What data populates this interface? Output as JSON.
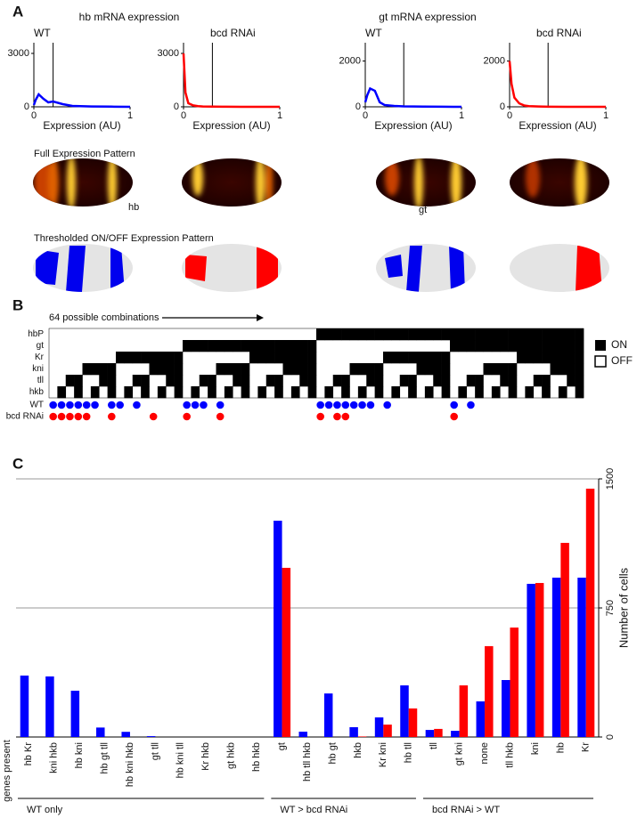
{
  "panel_labels": [
    "A",
    "B",
    "C"
  ],
  "panel_a": {
    "groups": [
      "hb mRNA expression",
      "gt mRNA expression"
    ],
    "full_title": "Full Expression Pattern",
    "threshold_title": "Thresholded ON/OFF Expression Pattern",
    "embryo_labels": [
      "hb",
      "gt"
    ]
  },
  "panel_b": {
    "title": "64 possible combinations",
    "rows": [
      "hbP",
      "gt",
      "Kr",
      "kni",
      "tll",
      "hkb"
    ],
    "legend": [
      "ON",
      "OFF"
    ],
    "dot_rows": [
      {
        "label": "WT",
        "color": "#0000ff",
        "columns": [
          0,
          1,
          2,
          3,
          4,
          5,
          7,
          8,
          10,
          16,
          17,
          18,
          20,
          32,
          33,
          34,
          35,
          36,
          37,
          38,
          40,
          48,
          50
        ]
      },
      {
        "label": "bcd RNAi",
        "color": "#ff0000",
        "columns": [
          0,
          1,
          2,
          3,
          4,
          7,
          12,
          16,
          20,
          32,
          34,
          35,
          48
        ]
      }
    ]
  },
  "chart_data": [
    {
      "type": "line",
      "title": "WT",
      "xlabel": "Expression (AU)",
      "x": [
        0,
        0.02,
        0.05,
        0.1,
        0.15,
        0.2,
        0.3,
        0.4,
        0.6,
        0.8,
        1
      ],
      "series": [
        {
          "color": "#0000ff",
          "values": [
            100,
            400,
            700,
            450,
            250,
            300,
            150,
            50,
            20,
            10,
            0
          ]
        }
      ],
      "threshold": 0.2,
      "xlim": [
        0,
        1
      ],
      "xticks": [
        0,
        1
      ],
      "ylim": [
        0,
        3600
      ],
      "yticks": [
        0,
        3000
      ]
    },
    {
      "type": "line",
      "title": "bcd RNAi",
      "xlabel": "Expression (AU)",
      "x": [
        0,
        0.02,
        0.05,
        0.1,
        0.15,
        0.2,
        0.3,
        0.4,
        0.6,
        0.8,
        1
      ],
      "series": [
        {
          "color": "#ff0000",
          "values": [
            3000,
            800,
            200,
            80,
            40,
            20,
            10,
            5,
            0,
            0,
            0
          ]
        }
      ],
      "threshold": 0.3,
      "xlim": [
        0,
        1
      ],
      "xticks": [
        0,
        1
      ],
      "ylim": [
        0,
        3600
      ],
      "yticks": [
        0,
        3000
      ]
    },
    {
      "type": "line",
      "title": "WT",
      "xlabel": "Expression (AU)",
      "x": [
        0,
        0.02,
        0.05,
        0.1,
        0.15,
        0.2,
        0.3,
        0.4,
        0.6,
        0.8,
        1
      ],
      "series": [
        {
          "color": "#0000ff",
          "values": [
            200,
            500,
            800,
            700,
            200,
            80,
            40,
            20,
            10,
            5,
            0
          ]
        }
      ],
      "threshold": 0.4,
      "xlim": [
        0,
        1
      ],
      "xticks": [
        0,
        1
      ],
      "ylim": [
        0,
        2800
      ],
      "yticks": [
        0,
        2000
      ]
    },
    {
      "type": "line",
      "title": "bcd RNAi",
      "xlabel": "Expression (AU)",
      "x": [
        0,
        0.02,
        0.05,
        0.1,
        0.15,
        0.2,
        0.3,
        0.4,
        0.6,
        0.8,
        1
      ],
      "series": [
        {
          "color": "#ff0000",
          "values": [
            2000,
            1000,
            400,
            150,
            60,
            30,
            15,
            5,
            0,
            0,
            0
          ]
        }
      ],
      "threshold": 0.4,
      "xlim": [
        0,
        1
      ],
      "xticks": [
        0,
        1
      ],
      "ylim": [
        0,
        2800
      ],
      "yticks": [
        0,
        2000
      ]
    },
    {
      "type": "bar",
      "xlabel": "genes present",
      "ylabel": "Number of cells",
      "groups": [
        {
          "label": "WT only",
          "categories": [
            "hb Kr",
            "kni hkb",
            "hb kni",
            "hb gt tll",
            "hb kni hkb",
            "gt tll",
            "hb kni tll",
            "Kr hkb",
            "gt hkb",
            "hb hkb"
          ]
        },
        {
          "label": "WT > bcd RNAi",
          "categories": [
            "gt",
            "hb tll hkb",
            "hb gt",
            "hkb",
            "Kr kni",
            "hb tll"
          ]
        },
        {
          "label": "bcd RNAi > WT",
          "categories": [
            "tll",
            "gt kni",
            "none",
            "tll hkb",
            "kni",
            "hb",
            "Kr"
          ]
        }
      ],
      "series": [
        {
          "color": "#0000ff",
          "values": [
            357,
            352,
            269,
            55,
            30,
            5,
            0,
            0,
            0,
            0,
            1257,
            31,
            253,
            57,
            114,
            300,
            41,
            36,
            207,
            331,
            890,
            926,
            926
          ]
        },
        {
          "color": "#ff0000",
          "values": [
            0,
            0,
            0,
            0,
            0,
            0,
            0,
            0,
            0,
            0,
            983,
            0,
            0,
            3,
            72,
            166,
            47,
            300,
            528,
            636,
            895,
            1128,
            1443
          ]
        }
      ],
      "ylim": [
        0,
        1500
      ],
      "yticks": [
        0,
        750,
        1500
      ],
      "grid": true
    }
  ]
}
